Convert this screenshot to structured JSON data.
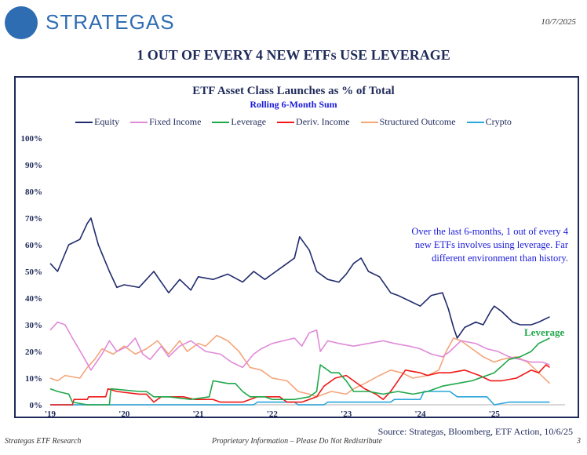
{
  "header": {
    "brand": "STRATEGAS",
    "date": "10/7/2025"
  },
  "headline": "1 OUT OF EVERY 4 NEW ETFs USE LEVERAGE",
  "annotation": "Over the last 6-months, 1 out of every 4 new ETFs involves using leverage. Far different environment than history.",
  "leverage_label": "Leverage",
  "source": "Source: Strategas, Bloomberg, ETF Action, 10/6/25",
  "footer": {
    "left": "Strategas ETF Research",
    "center": "Proprietary Information – Please Do Not Redistribute",
    "right": "3"
  },
  "chart_data": {
    "type": "line",
    "title": "ETF Asset Class Launches as % of Total",
    "subtitle": "Rolling 6-Month Sum",
    "legend_position": "top",
    "grid": false,
    "xlim": [
      2019,
      2026.1
    ],
    "ylim": [
      0,
      100
    ],
    "yticks": [
      "0%",
      "10%",
      "20%",
      "30%",
      "40%",
      "50%",
      "60%",
      "70%",
      "80%",
      "90%",
      "100%"
    ],
    "xticks": [
      {
        "x": 2019,
        "label": "'19"
      },
      {
        "x": 2020,
        "label": "'20"
      },
      {
        "x": 2021,
        "label": "'21"
      },
      {
        "x": 2022,
        "label": "'22"
      },
      {
        "x": 2023,
        "label": "'23"
      },
      {
        "x": 2024,
        "label": "'24"
      },
      {
        "x": 2025,
        "label": "'25"
      }
    ],
    "series": [
      {
        "name": "Equity",
        "color": "#1f2a6b",
        "points": [
          [
            2019,
            53
          ],
          [
            2019.1,
            50
          ],
          [
            2019.25,
            60
          ],
          [
            2019.4,
            62
          ],
          [
            2019.5,
            68
          ],
          [
            2019.55,
            70
          ],
          [
            2019.65,
            60
          ],
          [
            2019.8,
            50
          ],
          [
            2019.9,
            44
          ],
          [
            2020,
            45
          ],
          [
            2020.2,
            44
          ],
          [
            2020.4,
            50
          ],
          [
            2020.5,
            46
          ],
          [
            2020.6,
            42
          ],
          [
            2020.75,
            47
          ],
          [
            2020.9,
            43
          ],
          [
            2021,
            48
          ],
          [
            2021.2,
            47
          ],
          [
            2021.4,
            49
          ],
          [
            2021.6,
            46
          ],
          [
            2021.75,
            50
          ],
          [
            2021.9,
            47
          ],
          [
            2022,
            49
          ],
          [
            2022.2,
            53
          ],
          [
            2022.3,
            55
          ],
          [
            2022.37,
            63
          ],
          [
            2022.5,
            58
          ],
          [
            2022.6,
            50
          ],
          [
            2022.75,
            47
          ],
          [
            2022.9,
            46
          ],
          [
            2023,
            49
          ],
          [
            2023.1,
            53
          ],
          [
            2023.2,
            55
          ],
          [
            2023.3,
            50
          ],
          [
            2023.45,
            48
          ],
          [
            2023.6,
            42
          ],
          [
            2023.7,
            41
          ],
          [
            2023.85,
            39
          ],
          [
            2024,
            37
          ],
          [
            2024.15,
            41
          ],
          [
            2024.3,
            42
          ],
          [
            2024.38,
            36
          ],
          [
            2024.45,
            29
          ],
          [
            2024.5,
            25
          ],
          [
            2024.6,
            29
          ],
          [
            2024.75,
            31
          ],
          [
            2024.85,
            30
          ],
          [
            2024.95,
            35
          ],
          [
            2025,
            37
          ],
          [
            2025.1,
            35
          ],
          [
            2025.25,
            31
          ],
          [
            2025.35,
            30
          ],
          [
            2025.5,
            30
          ],
          [
            2025.6,
            31
          ],
          [
            2025.75,
            33
          ]
        ]
      },
      {
        "name": "Fixed Income",
        "color": "#e08ad8",
        "points": [
          [
            2019,
            28
          ],
          [
            2019.1,
            31
          ],
          [
            2019.2,
            30
          ],
          [
            2019.3,
            25
          ],
          [
            2019.45,
            18
          ],
          [
            2019.55,
            13
          ],
          [
            2019.7,
            19
          ],
          [
            2019.8,
            24
          ],
          [
            2019.9,
            20
          ],
          [
            2020.05,
            22
          ],
          [
            2020.15,
            25
          ],
          [
            2020.25,
            19
          ],
          [
            2020.35,
            17
          ],
          [
            2020.5,
            22
          ],
          [
            2020.6,
            18
          ],
          [
            2020.75,
            22
          ],
          [
            2020.9,
            24
          ],
          [
            2021.1,
            20
          ],
          [
            2021.3,
            19
          ],
          [
            2021.45,
            16
          ],
          [
            2021.6,
            14
          ],
          [
            2021.75,
            19
          ],
          [
            2021.85,
            21
          ],
          [
            2022,
            23
          ],
          [
            2022.15,
            24
          ],
          [
            2022.3,
            25
          ],
          [
            2022.4,
            22
          ],
          [
            2022.5,
            27
          ],
          [
            2022.6,
            28
          ],
          [
            2022.65,
            20
          ],
          [
            2022.75,
            24
          ],
          [
            2022.9,
            23
          ],
          [
            2023.1,
            22
          ],
          [
            2023.3,
            23
          ],
          [
            2023.5,
            24
          ],
          [
            2023.65,
            23
          ],
          [
            2023.85,
            22
          ],
          [
            2024,
            21
          ],
          [
            2024.15,
            19
          ],
          [
            2024.3,
            18
          ],
          [
            2024.4,
            20
          ],
          [
            2024.55,
            24
          ],
          [
            2024.75,
            23
          ],
          [
            2024.9,
            21
          ],
          [
            2025.05,
            20
          ],
          [
            2025.2,
            18
          ],
          [
            2025.35,
            17
          ],
          [
            2025.5,
            16
          ],
          [
            2025.65,
            16
          ],
          [
            2025.75,
            15
          ]
        ]
      },
      {
        "name": "Leverage",
        "color": "#1fa84a",
        "points": [
          [
            2019,
            6
          ],
          [
            2019.1,
            5
          ],
          [
            2019.25,
            4
          ],
          [
            2019.3,
            1
          ],
          [
            2019.5,
            0
          ],
          [
            2019.8,
            0
          ],
          [
            2019.82,
            6
          ],
          [
            2020.2,
            5
          ],
          [
            2020.3,
            5
          ],
          [
            2020.4,
            3
          ],
          [
            2020.6,
            3
          ],
          [
            2020.9,
            2
          ],
          [
            2021.15,
            3
          ],
          [
            2021.2,
            9
          ],
          [
            2021.4,
            8
          ],
          [
            2021.5,
            8
          ],
          [
            2021.6,
            5
          ],
          [
            2021.7,
            3
          ],
          [
            2021.9,
            3
          ],
          [
            2022,
            2
          ],
          [
            2022.3,
            2
          ],
          [
            2022.5,
            3
          ],
          [
            2022.6,
            5
          ],
          [
            2022.65,
            15
          ],
          [
            2022.8,
            12
          ],
          [
            2022.9,
            12
          ],
          [
            2023,
            9
          ],
          [
            2023.1,
            5
          ],
          [
            2023.3,
            5
          ],
          [
            2023.5,
            4
          ],
          [
            2023.7,
            5
          ],
          [
            2023.9,
            4
          ],
          [
            2024.1,
            5
          ],
          [
            2024.3,
            7
          ],
          [
            2024.5,
            8
          ],
          [
            2024.7,
            9
          ],
          [
            2024.9,
            11
          ],
          [
            2025,
            12
          ],
          [
            2025.2,
            17
          ],
          [
            2025.35,
            18
          ],
          [
            2025.5,
            20
          ],
          [
            2025.6,
            23
          ],
          [
            2025.75,
            25
          ]
        ]
      },
      {
        "name": "Deriv. Income",
        "color": "#f01818",
        "points": [
          [
            2019,
            0
          ],
          [
            2019.3,
            0
          ],
          [
            2019.32,
            2
          ],
          [
            2019.5,
            2
          ],
          [
            2019.52,
            3
          ],
          [
            2019.75,
            3
          ],
          [
            2019.78,
            6
          ],
          [
            2019.9,
            5
          ],
          [
            2020.2,
            4
          ],
          [
            2020.3,
            4
          ],
          [
            2020.4,
            1
          ],
          [
            2020.5,
            3
          ],
          [
            2020.8,
            3
          ],
          [
            2020.95,
            2
          ],
          [
            2021.2,
            2
          ],
          [
            2021.3,
            1
          ],
          [
            2021.6,
            1
          ],
          [
            2021.7,
            2
          ],
          [
            2021.8,
            3
          ],
          [
            2022.1,
            3
          ],
          [
            2022.2,
            1
          ],
          [
            2022.4,
            1
          ],
          [
            2022.6,
            3
          ],
          [
            2022.7,
            7
          ],
          [
            2022.85,
            10
          ],
          [
            2023,
            11
          ],
          [
            2023.1,
            9
          ],
          [
            2023.25,
            6
          ],
          [
            2023.4,
            4
          ],
          [
            2023.5,
            2
          ],
          [
            2023.6,
            5
          ],
          [
            2023.7,
            9
          ],
          [
            2023.8,
            13
          ],
          [
            2024,
            12
          ],
          [
            2024.1,
            11
          ],
          [
            2024.25,
            12
          ],
          [
            2024.4,
            12
          ],
          [
            2024.6,
            13
          ],
          [
            2024.8,
            11
          ],
          [
            2024.95,
            9
          ],
          [
            2025.1,
            9
          ],
          [
            2025.3,
            10
          ],
          [
            2025.5,
            13
          ],
          [
            2025.6,
            12
          ],
          [
            2025.7,
            15
          ],
          [
            2025.75,
            14
          ]
        ]
      },
      {
        "name": "Structured Outcome",
        "color": "#f4a57a",
        "points": [
          [
            2019,
            10
          ],
          [
            2019.1,
            9
          ],
          [
            2019.2,
            11
          ],
          [
            2019.4,
            10
          ],
          [
            2019.5,
            14
          ],
          [
            2019.6,
            17
          ],
          [
            2019.7,
            21
          ],
          [
            2019.85,
            19
          ],
          [
            2020,
            22
          ],
          [
            2020.15,
            19
          ],
          [
            2020.3,
            21
          ],
          [
            2020.45,
            24
          ],
          [
            2020.6,
            19
          ],
          [
            2020.75,
            24
          ],
          [
            2020.85,
            20
          ],
          [
            2021,
            23
          ],
          [
            2021.1,
            22
          ],
          [
            2021.25,
            26
          ],
          [
            2021.4,
            24
          ],
          [
            2021.55,
            20
          ],
          [
            2021.7,
            14
          ],
          [
            2021.85,
            13
          ],
          [
            2022,
            10
          ],
          [
            2022.2,
            9
          ],
          [
            2022.35,
            5
          ],
          [
            2022.5,
            4
          ],
          [
            2022.6,
            3
          ],
          [
            2022.8,
            5
          ],
          [
            2023,
            4
          ],
          [
            2023.1,
            6
          ],
          [
            2023.25,
            8
          ],
          [
            2023.45,
            11
          ],
          [
            2023.6,
            13
          ],
          [
            2023.75,
            12
          ],
          [
            2023.9,
            10
          ],
          [
            2024.1,
            11
          ],
          [
            2024.25,
            13
          ],
          [
            2024.35,
            20
          ],
          [
            2024.45,
            25
          ],
          [
            2024.55,
            24
          ],
          [
            2024.7,
            21
          ],
          [
            2024.85,
            18
          ],
          [
            2025,
            16
          ],
          [
            2025.1,
            17
          ],
          [
            2025.3,
            18
          ],
          [
            2025.45,
            16
          ],
          [
            2025.6,
            12
          ],
          [
            2025.75,
            8
          ]
        ]
      },
      {
        "name": "Crypto",
        "color": "#2aa6dc",
        "points": [
          [
            2019,
            0
          ],
          [
            2021.75,
            0
          ],
          [
            2021.8,
            1
          ],
          [
            2022.3,
            1
          ],
          [
            2022.35,
            0
          ],
          [
            2022.7,
            0
          ],
          [
            2022.75,
            1
          ],
          [
            2023.6,
            1
          ],
          [
            2023.65,
            2
          ],
          [
            2024,
            2
          ],
          [
            2024.05,
            5
          ],
          [
            2024.4,
            5
          ],
          [
            2024.5,
            3
          ],
          [
            2024.9,
            3
          ],
          [
            2025,
            0
          ],
          [
            2025.2,
            1
          ],
          [
            2025.75,
            1
          ]
        ]
      }
    ]
  }
}
